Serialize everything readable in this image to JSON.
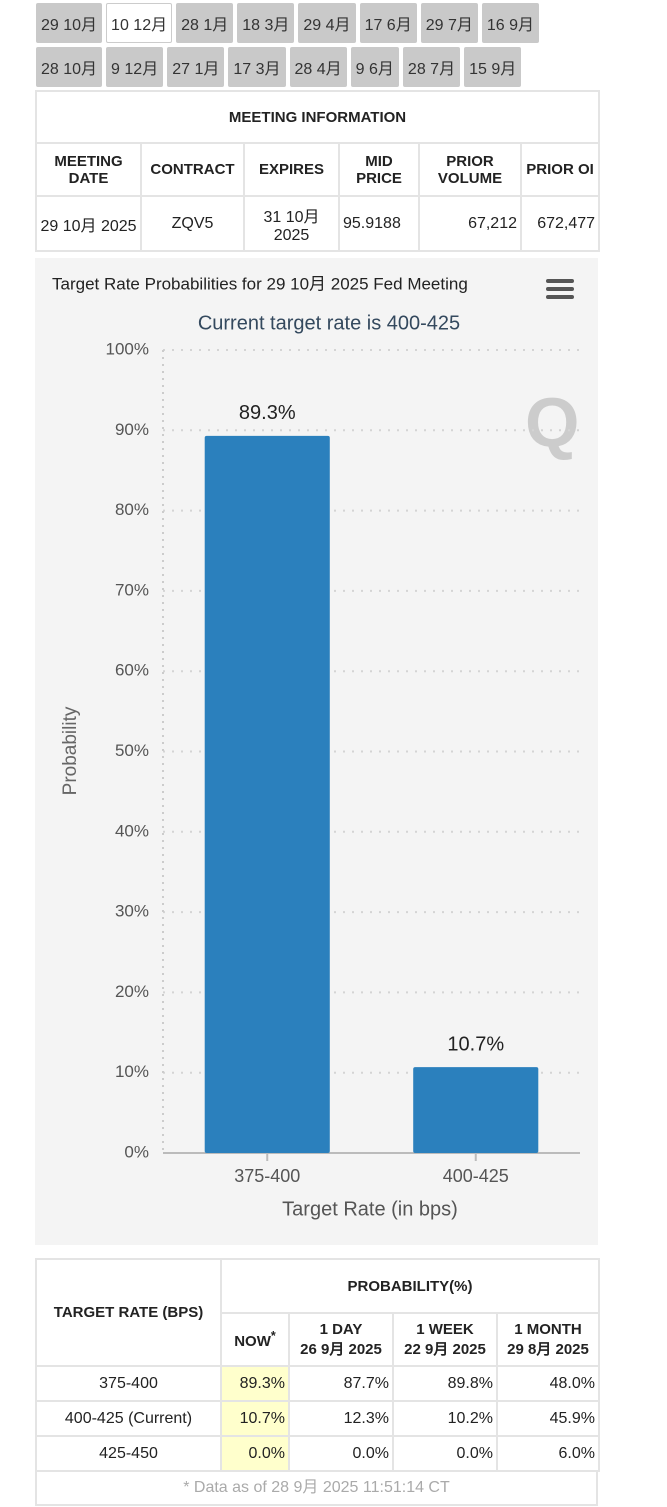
{
  "tabs": {
    "row1": [
      "29 10月",
      "10 12月",
      "28 1月",
      "18 3月",
      "29 4月",
      "17 6月",
      "29 7月",
      "16 9月"
    ],
    "row2": [
      "28 10月",
      "9 12月",
      "27 1月",
      "17 3月",
      "28 4月",
      "9 6月",
      "28 7月",
      "15 9月"
    ]
  },
  "meeting_info": {
    "title": "MEETING INFORMATION",
    "headers": [
      "MEETING DATE",
      "CONTRACT",
      "EXPIRES",
      "MID PRICE",
      "PRIOR VOLUME",
      "PRIOR OI"
    ],
    "row": [
      "29 10月 2025",
      "ZQV5",
      "31 10月 2025",
      "95.9188",
      "67,212",
      "672,477"
    ]
  },
  "chart_data": {
    "type": "bar",
    "title": "Target Rate Probabilities for 29 10月 2025 Fed Meeting",
    "subtitle": "Current target rate is 400-425",
    "categories": [
      "375-400",
      "400-425"
    ],
    "values": [
      89.3,
      10.7
    ],
    "value_labels": [
      "89.3%",
      "10.7%"
    ],
    "color": "#2b80bd",
    "ylim": [
      0,
      100
    ],
    "yticks": [
      {
        "value": 0,
        "label": "0%"
      },
      {
        "value": 10,
        "label": "10%"
      },
      {
        "value": 20,
        "label": "20%"
      },
      {
        "value": 30,
        "label": "30%"
      },
      {
        "value": 40,
        "label": "40%"
      },
      {
        "value": 50,
        "label": "50%"
      },
      {
        "value": 60,
        "label": "60%"
      },
      {
        "value": 70,
        "label": "70%"
      },
      {
        "value": 80,
        "label": "80%"
      },
      {
        "value": 90,
        "label": "90%"
      },
      {
        "value": 100,
        "label": "100%"
      }
    ],
    "y_label": "Probability",
    "x_label": "Target Rate (in bps)",
    "grid": true
  },
  "probability_table": {
    "row_header": "TARGET RATE (BPS)",
    "group_header": "PROBABILITY(%)",
    "columns": [
      [
        "NOW"
      ],
      [
        "1 DAY",
        "26 9月 2025"
      ],
      [
        "1 WEEK",
        "22 9月 2025"
      ],
      [
        "1 MONTH",
        "29 8月 2025"
      ]
    ],
    "note_marker": "*",
    "rows": [
      [
        "375-400",
        "89.3%",
        "87.7%",
        "89.8%",
        "48.0%"
      ],
      [
        "400-425 (Current)",
        "10.7%",
        "12.3%",
        "10.2%",
        "45.9%"
      ],
      [
        "425-450",
        "0.0%",
        "0.0%",
        "0.0%",
        "6.0%"
      ]
    ],
    "footnote": "* Data as of 28 9月 2025 11:51:14 CT"
  }
}
